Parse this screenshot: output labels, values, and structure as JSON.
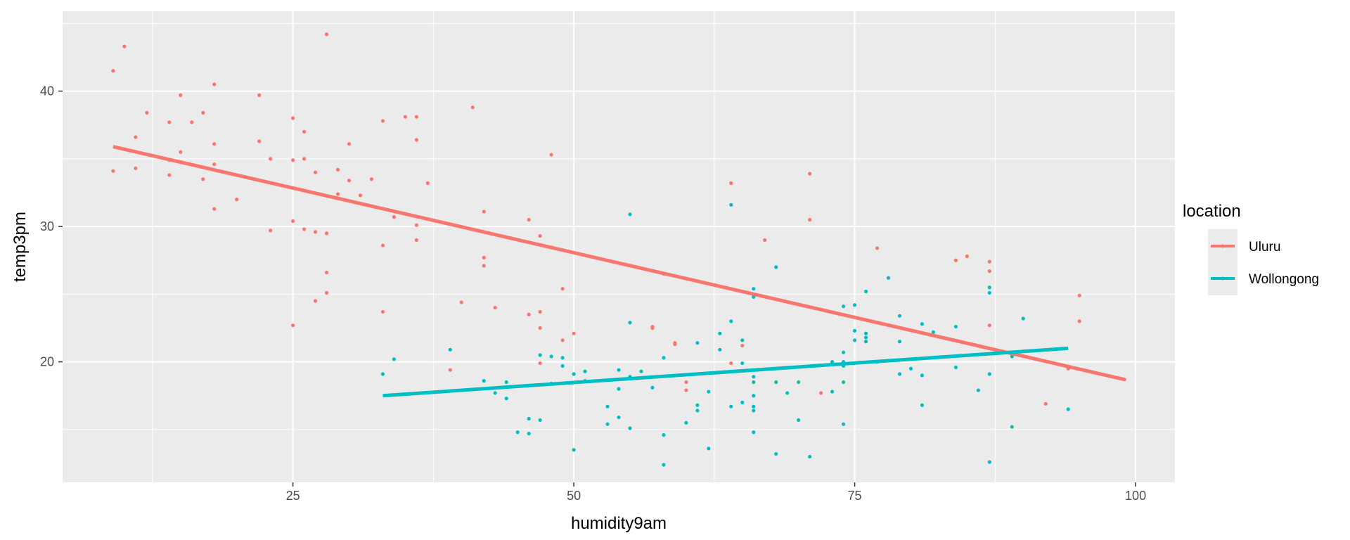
{
  "chart_data": {
    "type": "scatter",
    "xlabel": "humidity9am",
    "ylabel": "temp3pm",
    "xlim": [
      4.5,
      103.5
    ],
    "ylim": [
      11.1,
      45.9
    ],
    "x_ticks": [
      25,
      50,
      75,
      100
    ],
    "y_ticks": [
      20,
      30,
      40
    ],
    "x_tick_labels": [
      "25",
      "50",
      "75",
      "100"
    ],
    "y_tick_labels": [
      "20",
      "30",
      "40"
    ],
    "grid": true,
    "legend": {
      "title": "location",
      "position": "right"
    },
    "series": [
      {
        "name": "Uluru",
        "color": "#F8766D",
        "trend": [
          [
            9,
            35.9
          ],
          [
            99,
            18.7
          ]
        ],
        "points": [
          [
            9,
            41.5
          ],
          [
            10,
            43.3
          ],
          [
            9,
            34.1
          ],
          [
            11,
            36.6
          ],
          [
            11,
            34.3
          ],
          [
            12,
            38.4
          ],
          [
            14,
            37.7
          ],
          [
            14,
            33.8
          ],
          [
            14,
            34.9
          ],
          [
            15,
            39.7
          ],
          [
            15,
            35.5
          ],
          [
            16,
            37.7
          ],
          [
            17,
            38.4
          ],
          [
            17,
            33.5
          ],
          [
            18,
            40.5
          ],
          [
            18,
            36.1
          ],
          [
            18,
            34.6
          ],
          [
            18,
            31.3
          ],
          [
            20,
            32.0
          ],
          [
            22,
            39.7
          ],
          [
            22,
            36.3
          ],
          [
            23,
            35.0
          ],
          [
            23,
            29.7
          ],
          [
            25,
            38.0
          ],
          [
            25,
            34.9
          ],
          [
            25,
            30.4
          ],
          [
            25,
            22.7
          ],
          [
            26,
            37.0
          ],
          [
            26,
            35.0
          ],
          [
            26,
            29.8
          ],
          [
            27,
            34.0
          ],
          [
            27,
            29.6
          ],
          [
            27,
            24.5
          ],
          [
            28,
            44.2
          ],
          [
            28,
            29.5
          ],
          [
            28,
            26.6
          ],
          [
            28,
            25.1
          ],
          [
            29,
            34.2
          ],
          [
            29,
            32.4
          ],
          [
            30,
            36.1
          ],
          [
            30,
            33.4
          ],
          [
            31,
            32.3
          ],
          [
            32,
            33.5
          ],
          [
            33,
            37.8
          ],
          [
            33,
            28.6
          ],
          [
            33,
            23.7
          ],
          [
            34,
            30.7
          ],
          [
            35,
            38.1
          ],
          [
            36,
            38.1
          ],
          [
            36,
            36.4
          ],
          [
            36,
            30.1
          ],
          [
            36,
            29.0
          ],
          [
            37,
            33.2
          ],
          [
            39,
            19.4
          ],
          [
            40,
            24.4
          ],
          [
            41,
            38.8
          ],
          [
            42,
            31.1
          ],
          [
            42,
            27.7
          ],
          [
            42,
            27.1
          ],
          [
            43,
            24.0
          ],
          [
            46,
            30.5
          ],
          [
            46,
            23.5
          ],
          [
            47,
            29.3
          ],
          [
            47,
            23.7
          ],
          [
            47,
            22.5
          ],
          [
            47,
            19.9
          ],
          [
            48,
            35.3
          ],
          [
            49,
            25.4
          ],
          [
            49,
            21.6
          ],
          [
            50,
            22.1
          ],
          [
            57,
            22.6
          ],
          [
            57,
            22.5
          ],
          [
            58,
            26.5
          ],
          [
            59,
            21.4
          ],
          [
            59,
            21.3
          ],
          [
            60,
            18.5
          ],
          [
            60,
            17.9
          ],
          [
            64,
            33.2
          ],
          [
            64,
            19.9
          ],
          [
            65,
            21.2
          ],
          [
            67,
            29.0
          ],
          [
            71,
            33.9
          ],
          [
            71,
            30.5
          ],
          [
            72,
            17.7
          ],
          [
            77,
            28.4
          ],
          [
            84,
            27.5
          ],
          [
            85,
            27.8
          ],
          [
            87,
            27.4
          ],
          [
            87,
            26.7
          ],
          [
            87,
            22.7
          ],
          [
            92,
            16.9
          ],
          [
            94,
            19.5
          ],
          [
            95,
            24.9
          ],
          [
            95,
            23.0
          ],
          [
            99,
            18.7
          ]
        ]
      },
      {
        "name": "Wollongong",
        "color": "#00BFC4",
        "trend": [
          [
            33,
            17.5
          ],
          [
            94,
            21.0
          ]
        ],
        "points": [
          [
            33,
            19.1
          ],
          [
            34,
            20.2
          ],
          [
            39,
            20.9
          ],
          [
            42,
            18.6
          ],
          [
            43,
            17.7
          ],
          [
            44,
            18.5
          ],
          [
            44,
            17.3
          ],
          [
            45,
            14.8
          ],
          [
            46,
            15.8
          ],
          [
            46,
            14.7
          ],
          [
            47,
            20.5
          ],
          [
            47,
            15.7
          ],
          [
            48,
            20.4
          ],
          [
            48,
            18.4
          ],
          [
            49,
            20.3
          ],
          [
            49,
            19.7
          ],
          [
            50,
            19.1
          ],
          [
            50,
            13.5
          ],
          [
            51,
            19.3
          ],
          [
            51,
            18.6
          ],
          [
            53,
            16.7
          ],
          [
            53,
            15.4
          ],
          [
            54,
            19.4
          ],
          [
            54,
            18.0
          ],
          [
            54,
            15.9
          ],
          [
            55,
            30.9
          ],
          [
            55,
            22.9
          ],
          [
            55,
            18.9
          ],
          [
            55,
            15.1
          ],
          [
            56,
            19.3
          ],
          [
            57,
            18.1
          ],
          [
            58,
            20.3
          ],
          [
            58,
            14.6
          ],
          [
            58,
            12.4
          ],
          [
            60,
            15.5
          ],
          [
            61,
            21.4
          ],
          [
            61,
            16.8
          ],
          [
            61,
            16.4
          ],
          [
            62,
            17.8
          ],
          [
            62,
            13.6
          ],
          [
            63,
            22.1
          ],
          [
            63,
            20.9
          ],
          [
            64,
            31.6
          ],
          [
            64,
            23.0
          ],
          [
            64,
            16.7
          ],
          [
            65,
            21.6
          ],
          [
            65,
            19.9
          ],
          [
            65,
            17.0
          ],
          [
            66,
            25.4
          ],
          [
            66,
            24.8
          ],
          [
            66,
            18.9
          ],
          [
            66,
            18.5
          ],
          [
            66,
            17.5
          ],
          [
            66,
            16.7
          ],
          [
            66,
            16.4
          ],
          [
            66,
            14.8
          ],
          [
            68,
            27.0
          ],
          [
            68,
            18.5
          ],
          [
            68,
            13.2
          ],
          [
            69,
            17.7
          ],
          [
            70,
            18.5
          ],
          [
            70,
            15.7
          ],
          [
            71,
            13.0
          ],
          [
            73,
            20.0
          ],
          [
            73,
            17.8
          ],
          [
            74,
            24.1
          ],
          [
            74,
            20.7
          ],
          [
            74,
            20.0
          ],
          [
            74,
            19.7
          ],
          [
            74,
            18.5
          ],
          [
            74,
            15.4
          ],
          [
            75,
            24.2
          ],
          [
            75,
            22.3
          ],
          [
            75,
            21.6
          ],
          [
            76,
            25.2
          ],
          [
            76,
            22.1
          ],
          [
            76,
            21.8
          ],
          [
            76,
            21.5
          ],
          [
            77,
            20.0
          ],
          [
            78,
            26.2
          ],
          [
            79,
            23.4
          ],
          [
            79,
            21.5
          ],
          [
            79,
            19.1
          ],
          [
            80,
            19.5
          ],
          [
            81,
            22.8
          ],
          [
            81,
            19.0
          ],
          [
            81,
            16.8
          ],
          [
            82,
            22.2
          ],
          [
            84,
            22.6
          ],
          [
            84,
            19.6
          ],
          [
            86,
            17.9
          ],
          [
            87,
            25.5
          ],
          [
            87,
            25.1
          ],
          [
            87,
            19.1
          ],
          [
            87,
            12.6
          ],
          [
            89,
            20.4
          ],
          [
            89,
            15.2
          ],
          [
            90,
            23.2
          ],
          [
            94,
            16.5
          ]
        ]
      }
    ]
  }
}
